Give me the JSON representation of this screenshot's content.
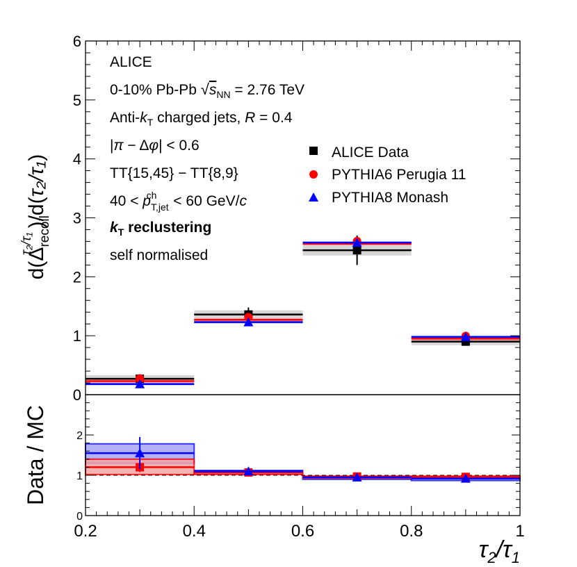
{
  "chart_data": [
    {
      "panel": "upper",
      "type": "bar",
      "x": {
        "edges": [
          0.2,
          0.4,
          0.6,
          0.8,
          1.0
        ],
        "range": [
          0.2,
          1.0
        ],
        "label": "τ2/τ1",
        "ticks": [
          "0.2",
          "0.4",
          "0.6",
          "0.8",
          "1"
        ]
      },
      "y": {
        "range": [
          0,
          6
        ],
        "label": "d(Δrecoil τ2/τ1)/d(τ2/τ1)",
        "ticks": [
          "0",
          "1",
          "2",
          "3",
          "4",
          "5",
          "6"
        ]
      },
      "annotations": {
        "experiment": "ALICE",
        "collision": "0-10% Pb-Pb √sNN = 2.76 TeV",
        "jets": "Anti-kT  charged jets, R = 0.4",
        "delta_phi": "|π − Δφ| < 0.6",
        "trigger": "TT{15,45} − TT{8,9}",
        "pt_range": "40 < pT,jet ch < 60 GeV/c",
        "recluster": "kT reclustering",
        "norm": "self normalised"
      },
      "legend": [
        {
          "name": "ALICE Data",
          "marker": "square",
          "color": "#000000"
        },
        {
          "name": "PYTHIA6 Perugia 11",
          "marker": "circle",
          "color": "#ff0000"
        },
        {
          "name": "PYTHIA8 Monash",
          "marker": "triangle",
          "color": "#0000ff"
        }
      ],
      "series": [
        {
          "name": "ALICE Data",
          "values": [
            0.27,
            1.36,
            2.45,
            0.9
          ],
          "stat_err": [
            0.04,
            0.12,
            0.25,
            0.04
          ],
          "sys_err": [
            0.06,
            0.07,
            0.09,
            0.06
          ],
          "color": "#000000",
          "band": "#d0d0d0"
        },
        {
          "name": "PYTHIA6 Perugia 11",
          "values": [
            0.23,
            1.27,
            2.56,
            0.95
          ],
          "sys_err": [
            0.03,
            0.03,
            0.03,
            0.03
          ],
          "color": "#ff0000",
          "band": "#f4a6a6"
        },
        {
          "name": "PYTHIA8 Monash",
          "values": [
            0.18,
            1.23,
            2.58,
            0.98
          ],
          "sys_err": [
            0.02,
            0.02,
            0.02,
            0.02
          ],
          "color": "#0000ff",
          "band": "#9f9ff2"
        }
      ]
    },
    {
      "panel": "ratio",
      "type": "bar",
      "x": {
        "edges": [
          0.2,
          0.4,
          0.6,
          0.8,
          1.0
        ],
        "range": [
          0.2,
          1.0
        ]
      },
      "y": {
        "range": [
          0,
          3
        ],
        "label": "Data / MC",
        "ticks": [
          "0",
          "1",
          "2"
        ],
        "reference": 1
      },
      "series": [
        {
          "name": "Data / PYTHIA6 Perugia 11",
          "values": [
            1.2,
            1.07,
            0.97,
            0.96
          ],
          "stat_err": [
            0.12,
            0.06,
            0.04,
            0.04
          ],
          "sys_low": [
            1.02,
            1.02,
            0.93,
            0.93
          ],
          "sys_high": [
            1.4,
            1.1,
            0.98,
            0.98
          ],
          "color": "#ff0000",
          "band": "#f4a6a6"
        },
        {
          "name": "Data / PYTHIA8 Monash",
          "values": [
            1.55,
            1.1,
            0.95,
            0.92
          ],
          "stat_err": [
            0.4,
            0.06,
            0.04,
            0.04
          ],
          "sys_low": [
            1.3,
            1.04,
            0.9,
            0.87
          ],
          "sys_high": [
            1.78,
            1.12,
            0.97,
            0.96
          ],
          "color": "#0000ff",
          "band": "#9f9ff2"
        }
      ]
    }
  ]
}
